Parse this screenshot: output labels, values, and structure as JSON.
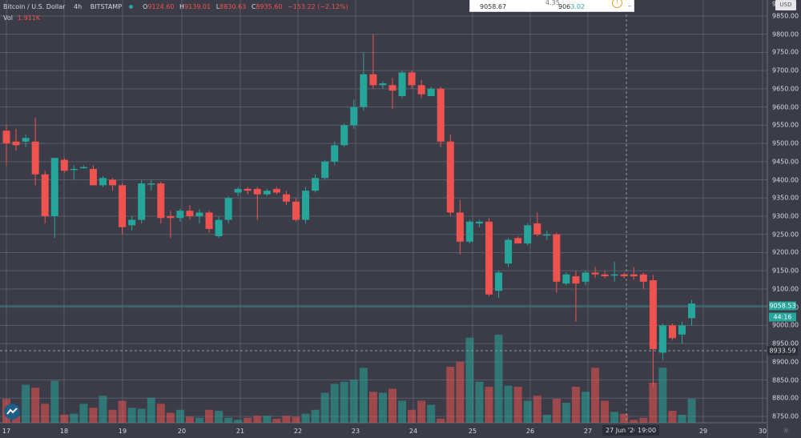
{
  "header": {
    "symbol": "Bitcoin / U.S. Dollar",
    "interval": "4h",
    "exchange": "BITSTAMP",
    "o_label": "O",
    "o_value": "9124.60",
    "h_label": "H",
    "h_value": "9139.01",
    "l_label": "L",
    "l_value": "8830.63",
    "c_label": "C",
    "c_value": "8935.60",
    "change": "−153.22 (−2.12%)"
  },
  "volume": {
    "label": "Vol",
    "value": "1.911K"
  },
  "trade_widget": {
    "bid": "9058.67",
    "spread": "4.35",
    "ask_main": "906",
    "ask_tail": "3.02",
    "info_icon": "info-icon",
    "minus": "–"
  },
  "price_scale": {
    "currency": "USD",
    "top_fragment": "9"
  },
  "tags": {
    "last_price": "9058.53",
    "countdown": "44:16",
    "crosshair_price": "8933.59",
    "crosshair_date": "27 Jun '20",
    "crosshair_time": "19:00"
  },
  "colors": {
    "up": "#26a69a",
    "down": "#ef5350",
    "background": "#3b3c48",
    "grid": "#5a5c6a"
  },
  "chart_data": {
    "type": "candlestick",
    "y_ticks": [
      "9850.00",
      "9800.00",
      "9750.00",
      "9700.00",
      "9650.00",
      "9600.00",
      "9550.00",
      "9500.00",
      "9450.00",
      "9400.00",
      "9350.00",
      "9300.00",
      "9250.00",
      "9200.00",
      "9150.00",
      "9100.00",
      "9050.00",
      "9000.00",
      "8950.00",
      "8900.00",
      "8850.00",
      "8800.00",
      "8750.00"
    ],
    "x_ticks": [
      "17",
      "18",
      "19",
      "20",
      "21",
      "22",
      "23",
      "24",
      "25",
      "26",
      "27",
      "29",
      "30"
    ],
    "ylim": [
      8730,
      9870
    ],
    "candles": [
      {
        "o": 9535,
        "h": 9550,
        "l": 9440,
        "c": 9500
      },
      {
        "o": 9505,
        "h": 9540,
        "l": 9480,
        "c": 9495
      },
      {
        "o": 9505,
        "h": 9525,
        "l": 9490,
        "c": 9515
      },
      {
        "o": 9505,
        "h": 9570,
        "l": 9385,
        "c": 9415
      },
      {
        "o": 9415,
        "h": 9425,
        "l": 9280,
        "c": 9300
      },
      {
        "o": 9300,
        "h": 9460,
        "l": 9240,
        "c": 9460
      },
      {
        "o": 9455,
        "h": 9460,
        "l": 9420,
        "c": 9425
      },
      {
        "o": 9430,
        "h": 9440,
        "l": 9400,
        "c": 9430
      },
      {
        "o": 9435,
        "h": 9440,
        "l": 9430,
        "c": 9435
      },
      {
        "o": 9430,
        "h": 9440,
        "l": 9385,
        "c": 9385
      },
      {
        "o": 9385,
        "h": 9410,
        "l": 9380,
        "c": 9405
      },
      {
        "o": 9400,
        "h": 9405,
        "l": 9370,
        "c": 9385
      },
      {
        "o": 9385,
        "h": 9390,
        "l": 9250,
        "c": 9270
      },
      {
        "o": 9275,
        "h": 9300,
        "l": 9260,
        "c": 9290
      },
      {
        "o": 9290,
        "h": 9400,
        "l": 9280,
        "c": 9390
      },
      {
        "o": 9390,
        "h": 9400,
        "l": 9370,
        "c": 9390
      },
      {
        "o": 9390,
        "h": 9395,
        "l": 9280,
        "c": 9295
      },
      {
        "o": 9300,
        "h": 9315,
        "l": 9240,
        "c": 9295
      },
      {
        "o": 9295,
        "h": 9320,
        "l": 9285,
        "c": 9315
      },
      {
        "o": 9315,
        "h": 9330,
        "l": 9290,
        "c": 9300
      },
      {
        "o": 9300,
        "h": 9320,
        "l": 9280,
        "c": 9310
      },
      {
        "o": 9310,
        "h": 9315,
        "l": 9255,
        "c": 9265
      },
      {
        "o": 9245,
        "h": 9300,
        "l": 9240,
        "c": 9290
      },
      {
        "o": 9290,
        "h": 9355,
        "l": 9280,
        "c": 9350
      },
      {
        "o": 9365,
        "h": 9380,
        "l": 9355,
        "c": 9375
      },
      {
        "o": 9375,
        "h": 9380,
        "l": 9360,
        "c": 9370
      },
      {
        "o": 9375,
        "h": 9380,
        "l": 9290,
        "c": 9360
      },
      {
        "o": 9360,
        "h": 9375,
        "l": 9355,
        "c": 9370
      },
      {
        "o": 9375,
        "h": 9380,
        "l": 9360,
        "c": 9365
      },
      {
        "o": 9360,
        "h": 9370,
        "l": 9330,
        "c": 9340
      },
      {
        "o": 9340,
        "h": 9350,
        "l": 9285,
        "c": 9290
      },
      {
        "o": 9290,
        "h": 9380,
        "l": 9280,
        "c": 9370
      },
      {
        "o": 9370,
        "h": 9415,
        "l": 9365,
        "c": 9405
      },
      {
        "o": 9405,
        "h": 9455,
        "l": 9400,
        "c": 9450
      },
      {
        "o": 9450,
        "h": 9505,
        "l": 9440,
        "c": 9495
      },
      {
        "o": 9495,
        "h": 9555,
        "l": 9490,
        "c": 9550
      },
      {
        "o": 9550,
        "h": 9620,
        "l": 9540,
        "c": 9600
      },
      {
        "o": 9600,
        "h": 9750,
        "l": 9590,
        "c": 9690
      },
      {
        "o": 9690,
        "h": 9800,
        "l": 9650,
        "c": 9660
      },
      {
        "o": 9660,
        "h": 9670,
        "l": 9650,
        "c": 9665
      },
      {
        "o": 9660,
        "h": 9680,
        "l": 9595,
        "c": 9645
      },
      {
        "o": 9630,
        "h": 9700,
        "l": 9625,
        "c": 9695
      },
      {
        "o": 9695,
        "h": 9700,
        "l": 9650,
        "c": 9660
      },
      {
        "o": 9660,
        "h": 9675,
        "l": 9625,
        "c": 9635
      },
      {
        "o": 9630,
        "h": 9655,
        "l": 9630,
        "c": 9650
      },
      {
        "o": 9650,
        "h": 9655,
        "l": 9490,
        "c": 9505
      },
      {
        "o": 9505,
        "h": 9525,
        "l": 9300,
        "c": 9310
      },
      {
        "o": 9310,
        "h": 9345,
        "l": 9195,
        "c": 9230
      },
      {
        "o": 9230,
        "h": 9290,
        "l": 9225,
        "c": 9285
      },
      {
        "o": 9280,
        "h": 9290,
        "l": 9270,
        "c": 9285
      },
      {
        "o": 9285,
        "h": 9295,
        "l": 9080,
        "c": 9085
      },
      {
        "o": 9095,
        "h": 9150,
        "l": 9075,
        "c": 9145
      },
      {
        "o": 9170,
        "h": 9240,
        "l": 9160,
        "c": 9235
      },
      {
        "o": 9240,
        "h": 9245,
        "l": 9225,
        "c": 9225
      },
      {
        "o": 9225,
        "h": 9280,
        "l": 9220,
        "c": 9275
      },
      {
        "o": 9280,
        "h": 9310,
        "l": 9245,
        "c": 9250
      },
      {
        "o": 9250,
        "h": 9260,
        "l": 9235,
        "c": 9250
      },
      {
        "o": 9250,
        "h": 9255,
        "l": 9090,
        "c": 9120
      },
      {
        "o": 9115,
        "h": 9145,
        "l": 9110,
        "c": 9140
      },
      {
        "o": 9135,
        "h": 9150,
        "l": 9010,
        "c": 9115
      },
      {
        "o": 9120,
        "h": 9150,
        "l": 9110,
        "c": 9145
      },
      {
        "o": 9145,
        "h": 9160,
        "l": 9130,
        "c": 9140
      },
      {
        "o": 9140,
        "h": 9150,
        "l": 9130,
        "c": 9135
      },
      {
        "o": 9140,
        "h": 9175,
        "l": 9120,
        "c": 9140
      },
      {
        "o": 9140,
        "h": 9145,
        "l": 9130,
        "c": 9135
      },
      {
        "o": 9140,
        "h": 9160,
        "l": 9125,
        "c": 9135
      },
      {
        "o": 9140,
        "h": 9145,
        "l": 9100,
        "c": 9120
      },
      {
        "o": 9124,
        "h": 9139,
        "l": 8830,
        "c": 8935
      },
      {
        "o": 8925,
        "h": 9005,
        "l": 8905,
        "c": 9000
      },
      {
        "o": 9000,
        "h": 9005,
        "l": 8960,
        "c": 8965
      },
      {
        "o": 8975,
        "h": 9010,
        "l": 8950,
        "c": 9000
      },
      {
        "o": 9020,
        "h": 9070,
        "l": 9000,
        "c": 9060
      }
    ],
    "volumes": [
      0.24,
      0.06,
      0.38,
      0.35,
      0.19,
      0.42,
      0.08,
      0.09,
      0.19,
      0.15,
      0.27,
      0.13,
      0.22,
      0.15,
      0.14,
      0.25,
      0.19,
      0.1,
      0.13,
      0.06,
      0.05,
      0.13,
      0.12,
      0.05,
      0.03,
      0.05,
      0.07,
      0.07,
      0.04,
      0.07,
      0.06,
      0.09,
      0.13,
      0.3,
      0.39,
      0.41,
      0.43,
      0.55,
      0.31,
      0.3,
      0.34,
      0.22,
      0.13,
      0.22,
      0.18,
      0.04,
      0.56,
      0.61,
      0.85,
      0.41,
      0.36,
      0.88,
      0.37,
      0.36,
      0.22,
      0.27,
      0.08,
      0.24,
      0.2,
      0.36,
      0.31,
      0.55,
      0.22,
      0.11,
      0.09,
      0.03,
      0.05,
      0.4,
      0.55,
      0.12,
      0.08,
      0.24
    ]
  }
}
